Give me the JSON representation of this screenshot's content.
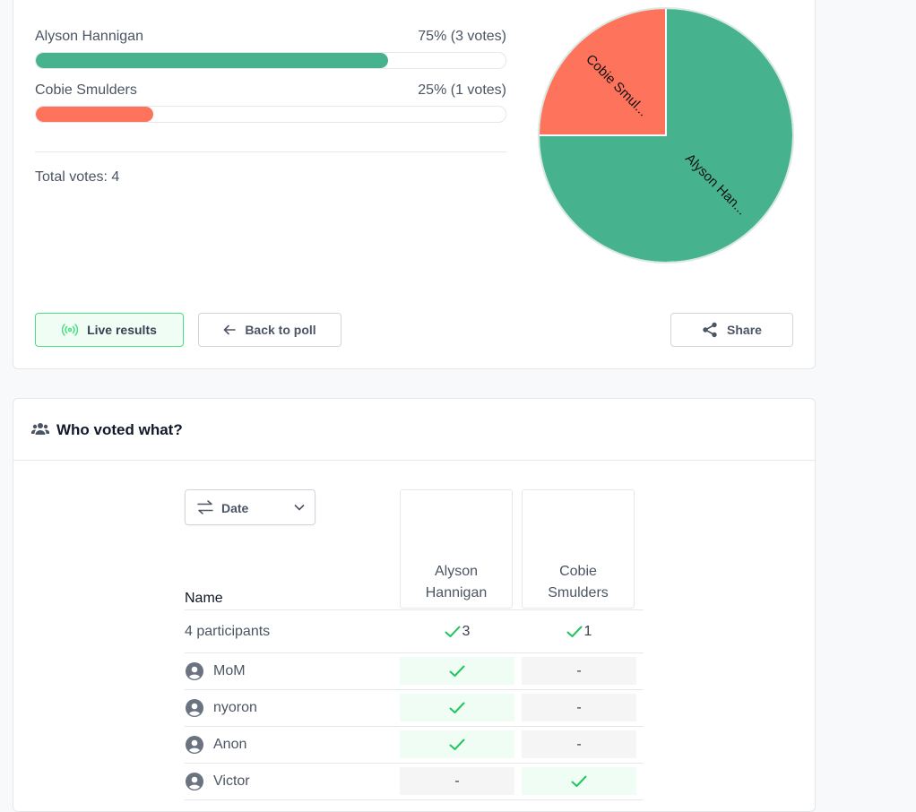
{
  "results": {
    "options": [
      {
        "name": "Alyson Hannigan",
        "percent": 75,
        "label": "75% (3 votes)",
        "pie_label": "Alyson Han...",
        "color": "#47b38e"
      },
      {
        "name": "Cobie Smulders",
        "percent": 25,
        "label": "25% (1 votes)",
        "pie_label": "Cobie Smul...",
        "color": "#fd735b"
      }
    ],
    "total_votes": "Total votes: 4"
  },
  "buttons": {
    "live": "Live results",
    "back": "Back to poll",
    "share": "Share"
  },
  "voters": {
    "title": "Who voted what?",
    "sort": "Date",
    "name_header": "Name",
    "participants": "4 participants",
    "counts": [
      3,
      1
    ],
    "no_vote": "-",
    "rows": [
      {
        "name": "MoM",
        "votes": [
          true,
          false
        ]
      },
      {
        "name": "nyoron",
        "votes": [
          true,
          false
        ]
      },
      {
        "name": "Anon",
        "votes": [
          true,
          false
        ]
      },
      {
        "name": "Victor",
        "votes": [
          false,
          true
        ]
      }
    ]
  }
}
